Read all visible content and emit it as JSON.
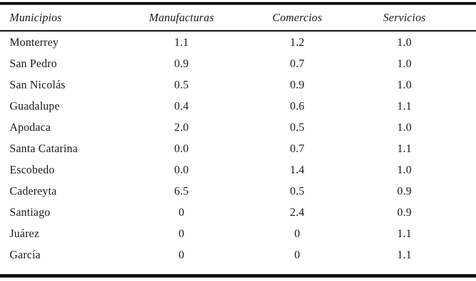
{
  "table": {
    "columns": [
      "Municipios",
      "Manufacturas",
      "Comercios",
      "Servicios"
    ],
    "rows": [
      [
        "Monterrey",
        "1.1",
        "1.2",
        "1.0"
      ],
      [
        "San Pedro",
        "0.9",
        "0.7",
        "1.0"
      ],
      [
        "San Nicolás",
        "0.5",
        "0.9",
        "1.0"
      ],
      [
        "Guadalupe",
        "0.4",
        "0.6",
        "1.1"
      ],
      [
        "Apodaca",
        "2.0",
        "0.5",
        "1.0"
      ],
      [
        "Santa Catarina",
        "0.0",
        "0.7",
        "1.1"
      ],
      [
        "Escobedo",
        "0.0",
        "1.4",
        "1.0"
      ],
      [
        "Cadereyta",
        "6.5",
        "0.5",
        "0.9"
      ],
      [
        "Santiago",
        "0",
        "2.4",
        "0.9"
      ],
      [
        "Juárez",
        "0",
        "0",
        "1.1"
      ],
      [
        "García",
        "0",
        "0",
        "1.1"
      ]
    ],
    "colors": {
      "rule": "#0e0e0e",
      "text": "#1a1a1a",
      "background": "#ffffff"
    }
  }
}
